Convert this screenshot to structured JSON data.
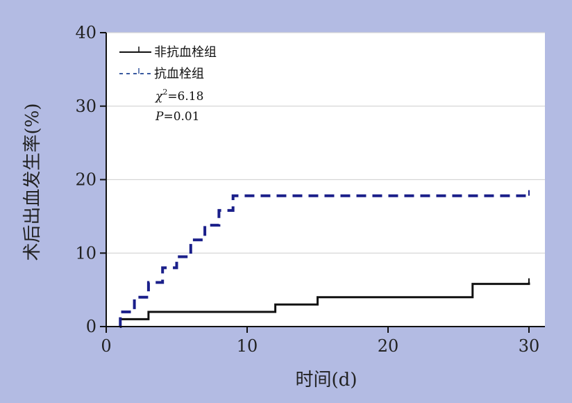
{
  "chart_data": {
    "type": "line",
    "subtype": "kaplan-meier-step",
    "xlabel": "时间(d)",
    "ylabel": "术后出血发生率(%)",
    "xlim": [
      0,
      30
    ],
    "ylim": [
      0,
      40
    ],
    "xticks": [
      "0",
      "10",
      "20",
      "30"
    ],
    "yticks": [
      "0",
      "10",
      "20",
      "30",
      "40"
    ],
    "grid": true,
    "legend_position": "top-left",
    "background_color": "#b3bbe3",
    "plot_background_color": "#ffffff",
    "series": [
      {
        "name": "非抗血栓组",
        "color": "#111111",
        "style": "solid",
        "x": [
          0.97,
          1,
          3,
          12,
          15,
          26,
          30
        ],
        "y": [
          0,
          1,
          2,
          3,
          4,
          5.8,
          6
        ]
      },
      {
        "name": "抗血栓组",
        "color": "#1a1f8a",
        "style": "dashed",
        "x": [
          0.97,
          1,
          2,
          3,
          4,
          5,
          6,
          7,
          8,
          9,
          10,
          30
        ],
        "y": [
          0,
          2,
          4,
          6,
          8,
          9.5,
          11.8,
          13.8,
          15.8,
          17.8,
          17.8,
          18
        ]
      }
    ],
    "annotations": {
      "chi_symbol": "χ",
      "chi_superscript": "2",
      "chi_value": "=6.18",
      "p_symbol": "P",
      "p_value": "=0.01"
    }
  }
}
